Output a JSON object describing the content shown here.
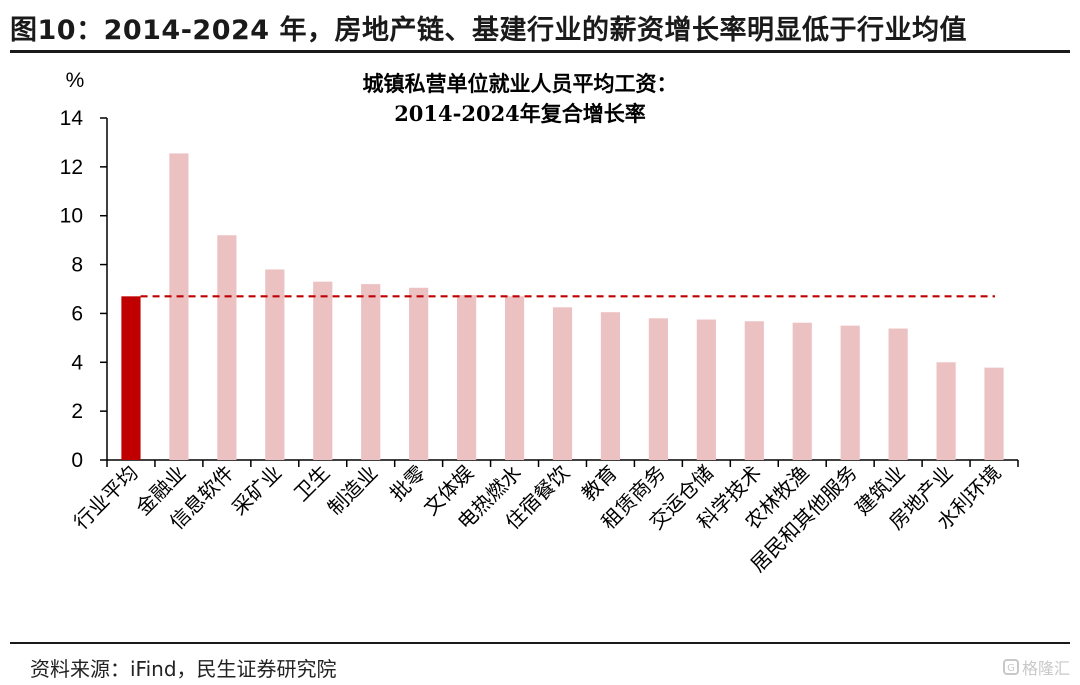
{
  "header": {
    "title": "图10：2014-2024 年，房地产链、基建行业的薪资增长率明显低于行业均值"
  },
  "footer": {
    "source": "资料来源：iFind，民生证券研究院",
    "watermark": "格隆汇",
    "watermark_icon": "logo-icon"
  },
  "colors": {
    "average_bar": "#c00000",
    "industry_bar": "#ecc1c2",
    "reference_line": "#c00000",
    "axis": "#000000"
  },
  "chart_data": {
    "type": "bar",
    "title_lines": [
      "城镇私营单位就业人员平均工资：",
      "2014-2024年复合增长率"
    ],
    "ylabel": "%",
    "xlabel": "",
    "ylim": [
      0,
      14
    ],
    "yticks": [
      0,
      2,
      4,
      6,
      8,
      10,
      12,
      14
    ],
    "grid": false,
    "legend": "none",
    "categories": [
      "行业平均",
      "金融业",
      "信息软件",
      "采矿业",
      "卫生",
      "制造业",
      "批零",
      "文体娱",
      "电热燃水",
      "住宿餐饮",
      "教育",
      "租赁商务",
      "交运仓储",
      "科学技术",
      "农林牧渔",
      "居民和其他服务",
      "建筑业",
      "房地产业",
      "水利环境"
    ],
    "values": [
      6.7,
      12.55,
      9.2,
      7.8,
      7.3,
      7.2,
      7.05,
      6.75,
      6.7,
      6.25,
      6.05,
      5.8,
      5.75,
      5.68,
      5.62,
      5.5,
      5.38,
      4.0,
      3.78
    ],
    "highlight_index": 0,
    "reference_line": {
      "value": 6.7,
      "style": "dashed"
    }
  }
}
